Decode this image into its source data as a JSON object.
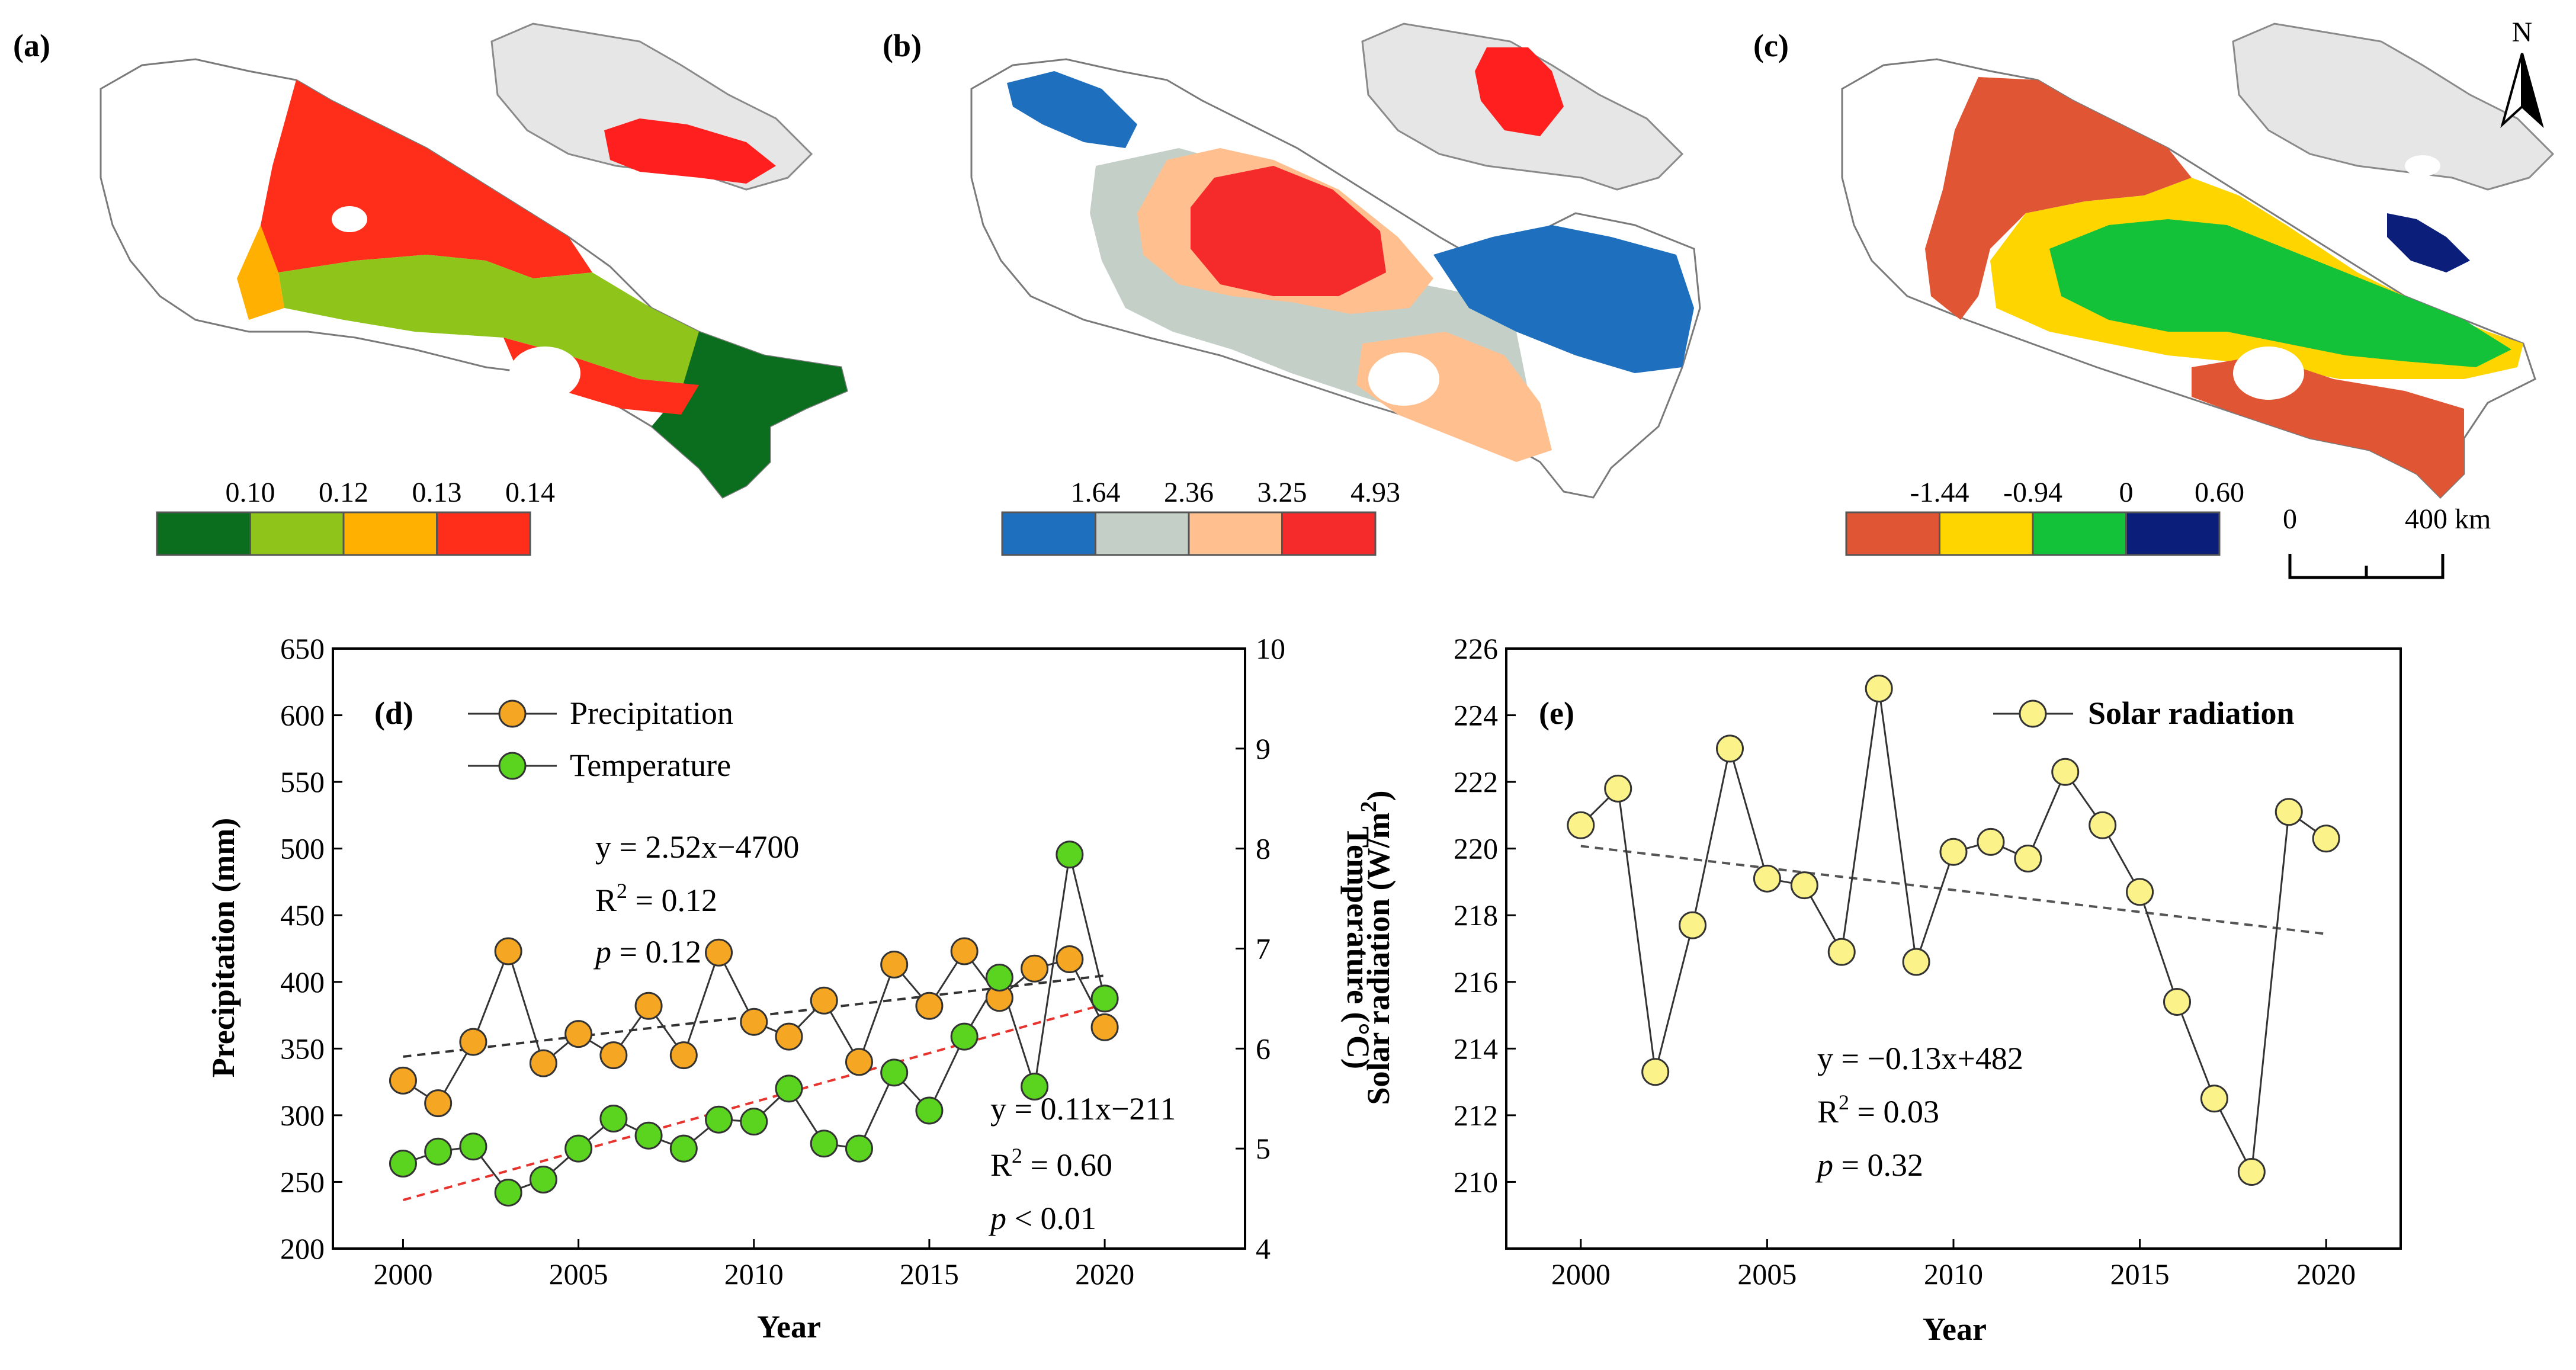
{
  "maps": [
    {
      "label": "(a)",
      "colorbar": {
        "ticks": [
          "0.10",
          "0.12",
          "0.13",
          "0.14"
        ],
        "colors": [
          "#0a6e1e",
          "#8fc51b",
          "#ffb000",
          "#ff2e1a"
        ]
      },
      "inset_color": "#ff1f1f"
    },
    {
      "label": "(b)",
      "colorbar": {
        "ticks": [
          "1.64",
          "2.36",
          "3.25",
          "4.93"
        ],
        "colors": [
          "#1f6fbf",
          "#c4cfc7",
          "#ffbf8f",
          "#f52a2a"
        ]
      },
      "inset_color": "#ff1f1f"
    },
    {
      "label": "(c)",
      "colorbar": {
        "ticks": [
          "-1.44",
          "-0.94",
          "0",
          "0.60"
        ],
        "colors": [
          "#e05534",
          "#ffd500",
          "#14c23a",
          "#0b1f7a"
        ]
      },
      "inset_color": "#ffffff"
    }
  ],
  "north_label": "N",
  "scalebar": {
    "start": "0",
    "end": "400 km"
  },
  "chart_data": [
    {
      "label": "(d)",
      "type": "line",
      "x": [
        2000,
        2001,
        2002,
        2003,
        2004,
        2005,
        2006,
        2007,
        2008,
        2009,
        2010,
        2011,
        2012,
        2013,
        2014,
        2015,
        2016,
        2017,
        2018,
        2019,
        2020
      ],
      "xlabel": "Year",
      "xlim": [
        1998,
        2024
      ],
      "xticks": [
        2000,
        2005,
        2010,
        2015,
        2020
      ],
      "series": [
        {
          "name": "Precipitation",
          "axis": "left",
          "color": "#f5a623",
          "values": [
            326,
            309,
            355,
            423,
            339,
            361,
            345,
            382,
            345,
            422,
            370,
            359,
            386,
            340,
            413,
            382,
            423,
            388,
            410,
            417,
            366
          ]
        },
        {
          "name": "Temperature",
          "axis": "right",
          "color": "#5ad41e",
          "values": [
            4.85,
            4.97,
            5.02,
            4.56,
            4.69,
            5.0,
            5.3,
            5.13,
            5.0,
            5.29,
            5.27,
            5.6,
            5.05,
            5.0,
            5.76,
            5.38,
            6.12,
            6.71,
            5.62,
            7.94,
            6.5
          ]
        }
      ],
      "ylabel_left": "Precipitation (mm)",
      "ylim_left": [
        200,
        650
      ],
      "yticks_left": [
        200,
        250,
        300,
        350,
        400,
        450,
        500,
        550,
        600,
        650
      ],
      "ylabel_right": "Temperature (°C)",
      "ylim_right": [
        4,
        10
      ],
      "yticks_right": [
        4,
        5,
        6,
        7,
        8,
        9,
        10
      ],
      "trend_left": {
        "slope": 2.52,
        "intercept": -4700,
        "color": "#333333"
      },
      "trend_right": {
        "slope": 0.11,
        "intercept": -211,
        "color": "#e8342e"
      },
      "annotations": {
        "precip_eq": "y = 2.52x−4700",
        "precip_r2_prefix": "R",
        "precip_r2_value": " = 0.12",
        "precip_p_symbol": "p",
        "precip_p_value": " = 0.12",
        "temp_eq": "y = 0.11x−211",
        "temp_r2_prefix": "R",
        "temp_r2_value": " = 0.60",
        "temp_p_symbol": "p",
        "temp_p_value": " < 0.01",
        "superscript": "2"
      }
    },
    {
      "label": "(e)",
      "type": "line",
      "x": [
        2000,
        2001,
        2002,
        2003,
        2004,
        2005,
        2006,
        2007,
        2008,
        2009,
        2010,
        2011,
        2012,
        2013,
        2014,
        2015,
        2016,
        2017,
        2018,
        2019,
        2020
      ],
      "xlabel": "Year",
      "xlim": [
        1998,
        2022
      ],
      "xticks": [
        2000,
        2005,
        2010,
        2015,
        2020
      ],
      "series": [
        {
          "name": "Solar radiation",
          "color": "#fbf28a",
          "values": [
            220.7,
            221.8,
            213.3,
            217.7,
            223.0,
            219.1,
            218.9,
            216.9,
            224.8,
            216.6,
            219.9,
            220.2,
            219.7,
            222.3,
            220.7,
            218.7,
            215.4,
            212.5,
            210.3,
            221.1,
            220.3
          ]
        }
      ],
      "ylabel": "Solar radiation (W/m2)",
      "ylabel_main": "Solar radiation (W/m",
      "ylabel_sup": "2",
      "ylabel_end": ")",
      "ylim": [
        208,
        226
      ],
      "yticks": [
        210,
        212,
        214,
        216,
        218,
        220,
        222,
        224,
        226
      ],
      "trend": {
        "slope": -0.13,
        "intercept": 482,
        "color": "#555555"
      },
      "annotations": {
        "eq": "y = −0.13x+482",
        "r2_prefix": "R",
        "r2_value": " = 0.03",
        "p_symbol": "p",
        "p_value": " = 0.32",
        "superscript": "2"
      }
    }
  ]
}
